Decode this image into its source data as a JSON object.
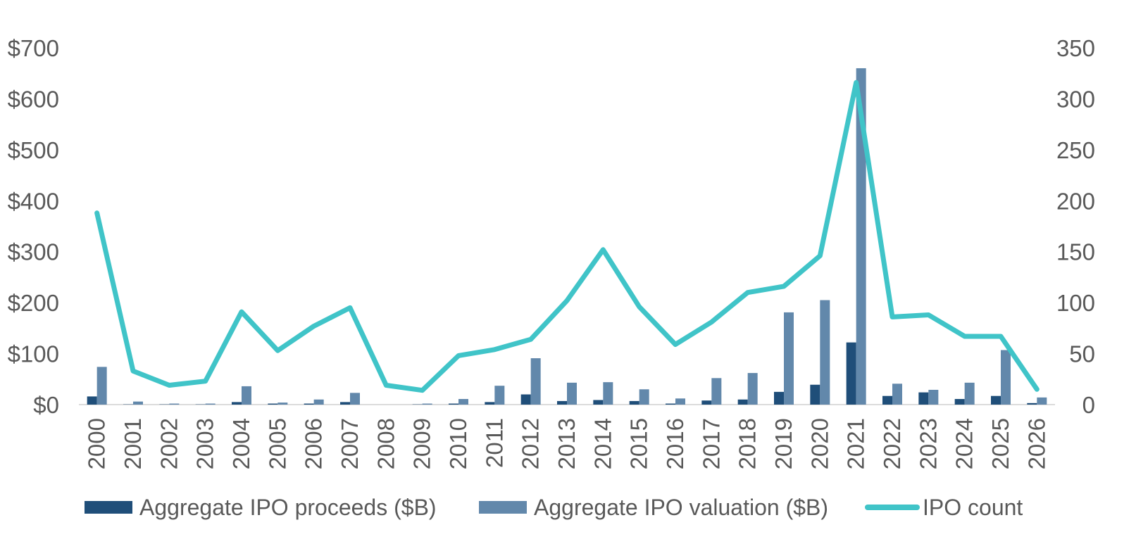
{
  "chart_data": {
    "type": "bar",
    "title": "",
    "xlabel": "",
    "ylabel": "",
    "categories": [
      "2000",
      "2001",
      "2002",
      "2003",
      "2004",
      "2005",
      "2006",
      "2007",
      "2008",
      "2009",
      "2010",
      "2011",
      "2012",
      "2013",
      "2014",
      "2015",
      "2016",
      "2017",
      "2018",
      "2019",
      "2020",
      "2021",
      "2022",
      "2023",
      "2024",
      "2025",
      "2026"
    ],
    "y_left": {
      "min": 0,
      "max": 700,
      "step": 100,
      "ticks": [
        "$0",
        "$100",
        "$200",
        "$300",
        "$400",
        "$500",
        "$600",
        "$700"
      ]
    },
    "y_right": {
      "min": 0,
      "max": 350,
      "step": 50,
      "ticks": [
        "0",
        "50",
        "100",
        "150",
        "200",
        "250",
        "300",
        "350"
      ]
    },
    "grid": false,
    "legend_position": "bottom",
    "series": [
      {
        "name": "Aggregate IPO proceeds ($B)",
        "type": "bar",
        "axis": "left",
        "color": "#1f4e79",
        "values": [
          16,
          0.5,
          0.5,
          0.5,
          5,
          2,
          2,
          5,
          0,
          0.5,
          2,
          5,
          20,
          7,
          9,
          7,
          2,
          8,
          10,
          25,
          39,
          122,
          17,
          24,
          11,
          17,
          3
        ]
      },
      {
        "name": "Aggregate IPO valuation ($B)",
        "type": "bar",
        "axis": "left",
        "color": "#6288ab",
        "values": [
          74,
          6,
          2,
          2,
          36,
          4,
          10,
          23,
          0,
          2,
          11,
          37,
          91,
          43,
          44,
          30,
          12,
          52,
          62,
          181,
          205,
          660,
          41,
          29,
          43,
          107,
          14
        ]
      },
      {
        "name": "IPO count",
        "type": "line",
        "axis": "right",
        "color": "#40c4c8",
        "values": [
          188,
          33,
          19,
          23,
          91,
          53,
          77,
          95,
          19,
          14,
          48,
          54,
          64,
          102,
          152,
          96,
          59,
          81,
          110,
          116,
          146,
          316,
          86,
          88,
          67,
          67,
          15
        ]
      }
    ]
  }
}
